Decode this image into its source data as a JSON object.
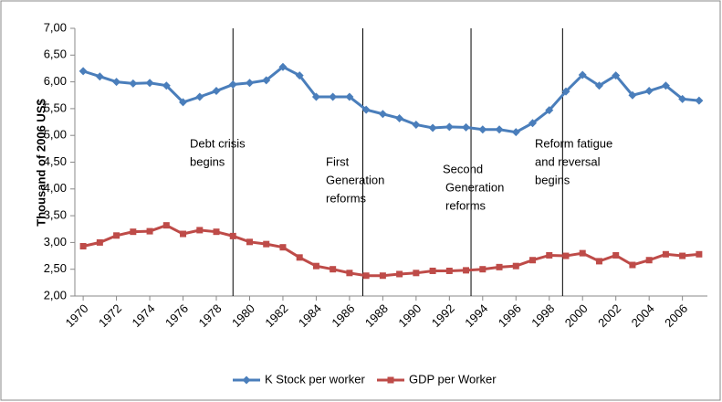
{
  "chart_data": {
    "type": "line",
    "y_label": "Thousand of 2006 US$",
    "x": [
      1970,
      1971,
      1972,
      1973,
      1974,
      1975,
      1976,
      1977,
      1978,
      1979,
      1980,
      1981,
      1982,
      1983,
      1984,
      1985,
      1986,
      1987,
      1988,
      1989,
      1990,
      1991,
      1992,
      1993,
      1994,
      1995,
      1996,
      1997,
      1998,
      1999,
      2000,
      2001,
      2002,
      2003,
      2004,
      2005,
      2006,
      2007
    ],
    "series": [
      {
        "name": "K Stock per worker",
        "color": "#4a7ebb",
        "marker": "diamond",
        "values": [
          6.2,
          6.1,
          6.0,
          5.97,
          5.98,
          5.93,
          5.62,
          5.72,
          5.83,
          5.95,
          5.98,
          6.03,
          6.28,
          6.12,
          5.72,
          5.72,
          5.72,
          5.48,
          5.4,
          5.32,
          5.2,
          5.14,
          5.16,
          5.15,
          5.11,
          5.11,
          5.06,
          5.23,
          5.47,
          5.82,
          6.13,
          5.93,
          6.12,
          5.75,
          5.83,
          5.93,
          5.68,
          5.65
        ]
      },
      {
        "name": "GDP per Worker",
        "color": "#be4b48",
        "marker": "square",
        "values": [
          2.93,
          3.0,
          3.13,
          3.2,
          3.21,
          3.32,
          3.16,
          3.23,
          3.2,
          3.12,
          3.01,
          2.97,
          2.91,
          2.72,
          2.56,
          2.5,
          2.43,
          2.38,
          2.38,
          2.41,
          2.43,
          2.47,
          2.47,
          2.48,
          2.5,
          2.54,
          2.56,
          2.67,
          2.76,
          2.75,
          2.8,
          2.65,
          2.76,
          2.58,
          2.67,
          2.78,
          2.75,
          2.78
        ]
      }
    ],
    "xlim": [
      1969.5,
      2007.5
    ],
    "xticks": [
      1970,
      1972,
      1974,
      1976,
      1978,
      1980,
      1982,
      1984,
      1986,
      1988,
      1990,
      1992,
      1994,
      1996,
      1998,
      2000,
      2002,
      2004,
      2006
    ],
    "ylim": [
      2,
      7
    ],
    "yticks": [
      {
        "value": 2,
        "label": "2,00"
      },
      {
        "value": 2.5,
        "label": "2,50"
      },
      {
        "value": 3,
        "label": "3,00"
      },
      {
        "value": 3.5,
        "label": "3,50"
      },
      {
        "value": 4,
        "label": "4,00"
      },
      {
        "value": 4.5,
        "label": "4,50"
      },
      {
        "value": 5,
        "label": "5,00"
      },
      {
        "value": 5.5,
        "label": "5,50"
      },
      {
        "value": 6,
        "label": "6,00"
      },
      {
        "value": 6.5,
        "label": "6,50"
      },
      {
        "value": 7,
        "label": "7,00"
      }
    ],
    "vlines": [
      1979,
      1986.8,
      1993.3,
      1998.8
    ],
    "annotations": [
      {
        "lines": [
          "Debt crisis",
          "begins"
        ]
      },
      {
        "lines": [
          "First",
          "Generation",
          "reforms"
        ]
      },
      {
        "lines": [
          "Second",
          "Generation",
          "reforms"
        ]
      },
      {
        "lines": [
          "Reform fatigue",
          "and reversal",
          "begins"
        ]
      }
    ],
    "legend": "bottom"
  }
}
